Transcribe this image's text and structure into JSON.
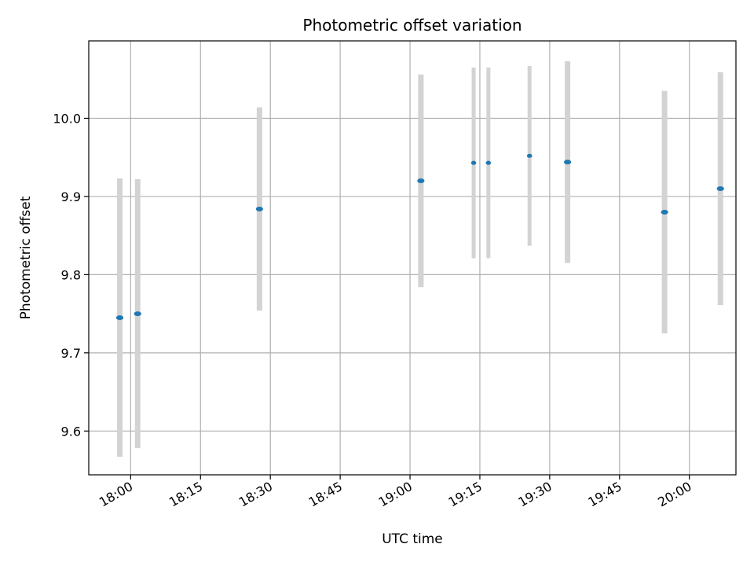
{
  "chart_data": {
    "type": "scatter",
    "title": "Photometric offset variation",
    "xlabel": "UTC time",
    "ylabel": "Photometric offset",
    "xlim": [
      "17:51",
      "20:10"
    ],
    "ylim": [
      9.544,
      10.099
    ],
    "x_ticks": [
      "18:00",
      "18:15",
      "18:30",
      "18:45",
      "19:00",
      "19:15",
      "19:30",
      "19:45",
      "20:00"
    ],
    "y_ticks": [
      "9.6",
      "9.7",
      "9.8",
      "9.9",
      "10.0"
    ],
    "grid": true,
    "legend": "none",
    "colors": {
      "marker": "#1f77b4",
      "errorbar": "#d3d3d3",
      "grid": "#b0b0b0"
    },
    "points": [
      {
        "x": "17:57:40",
        "y": 9.745,
        "yerr": 0.178
      },
      {
        "x": "18:01:30",
        "y": 9.75,
        "yerr": 0.172
      },
      {
        "x": "18:27:40",
        "y": 9.884,
        "yerr": 0.13
      },
      {
        "x": "19:02:20",
        "y": 9.92,
        "yerr": 0.136
      },
      {
        "x": "19:13:40",
        "y": 9.943,
        "yerr": 0.122
      },
      {
        "x": "19:16:50",
        "y": 9.943,
        "yerr": 0.122
      },
      {
        "x": "19:25:40",
        "y": 9.952,
        "yerr": 0.115
      },
      {
        "x": "19:33:50",
        "y": 9.944,
        "yerr": 0.129
      },
      {
        "x": "19:54:40",
        "y": 9.88,
        "yerr": 0.155
      },
      {
        "x": "20:06:40",
        "y": 9.91,
        "yerr": 0.149
      }
    ]
  }
}
